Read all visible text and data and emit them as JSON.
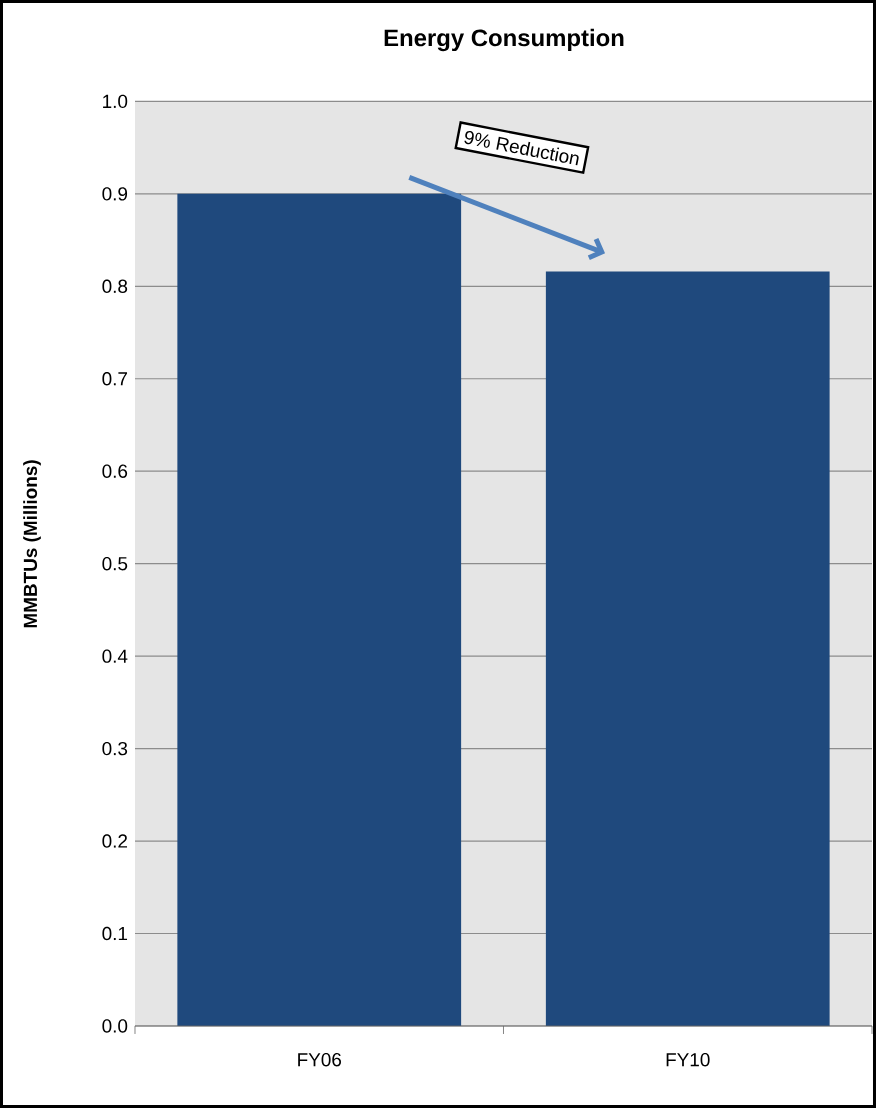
{
  "chart_data": {
    "type": "bar",
    "title": "Energy Consumption",
    "ylabel": "MMBTUs (Millions)",
    "categories": [
      "FY06",
      "FY10"
    ],
    "values": [
      0.9,
      0.816
    ],
    "color": "#1f497d",
    "ylim": [
      0,
      1.0
    ],
    "yticks": [
      {
        "value": 0,
        "label": "0.0"
      },
      {
        "value": 0.1,
        "label": "0.1"
      },
      {
        "value": 0.2,
        "label": "0.2"
      },
      {
        "value": 0.3,
        "label": "0.3"
      },
      {
        "value": 0.4,
        "label": "0.4"
      },
      {
        "value": 0.5,
        "label": "0.5"
      },
      {
        "value": 0.6,
        "label": "0.6"
      },
      {
        "value": 0.7,
        "label": "0.7"
      },
      {
        "value": 0.8,
        "label": "0.8"
      },
      {
        "value": 0.9,
        "label": "0.9"
      },
      {
        "value": 1.0,
        "label": "1.0"
      }
    ],
    "grid": "y",
    "annotations": [
      "9% Reduction"
    ]
  }
}
